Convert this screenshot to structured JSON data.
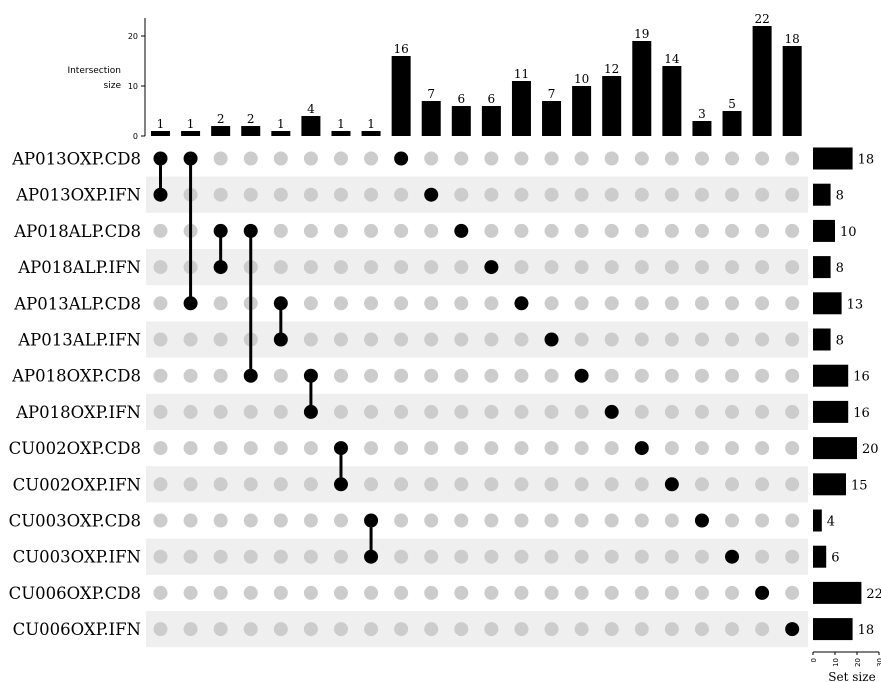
{
  "chart_data": {
    "type": "upset",
    "ylabel": "Intersection\nsize",
    "set_size_label": "Set size",
    "intersection_ticks": [
      0,
      10,
      20
    ],
    "set_size_ticks": [
      0,
      10,
      20,
      30
    ],
    "sets": [
      {
        "name": "AP013OXP.CD8",
        "size": 18
      },
      {
        "name": "AP013OXP.IFN",
        "size": 8
      },
      {
        "name": "AP018ALP.CD8",
        "size": 10
      },
      {
        "name": "AP018ALP.IFN",
        "size": 8
      },
      {
        "name": "AP013ALP.CD8",
        "size": 13
      },
      {
        "name": "AP013ALP.IFN",
        "size": 8
      },
      {
        "name": "AP018OXP.CD8",
        "size": 16
      },
      {
        "name": "AP018OXP.IFN",
        "size": 16
      },
      {
        "name": "CU002OXP.CD8",
        "size": 20
      },
      {
        "name": "CU002OXP.IFN",
        "size": 15
      },
      {
        "name": "CU003OXP.CD8",
        "size": 4
      },
      {
        "name": "CU003OXP.IFN",
        "size": 6
      },
      {
        "name": "CU006OXP.CD8",
        "size": 22
      },
      {
        "name": "CU006OXP.IFN",
        "size": 18
      }
    ],
    "intersections": [
      {
        "size": 1,
        "members": [
          0,
          1
        ]
      },
      {
        "size": 1,
        "members": [
          0,
          4
        ]
      },
      {
        "size": 2,
        "members": [
          2,
          3
        ]
      },
      {
        "size": 2,
        "members": [
          2,
          6
        ]
      },
      {
        "size": 1,
        "members": [
          4,
          5
        ]
      },
      {
        "size": 4,
        "members": [
          6,
          7
        ]
      },
      {
        "size": 1,
        "members": [
          8,
          9
        ]
      },
      {
        "size": 1,
        "members": [
          10,
          11
        ]
      },
      {
        "size": 16,
        "members": [
          0
        ]
      },
      {
        "size": 7,
        "members": [
          1
        ]
      },
      {
        "size": 6,
        "members": [
          2
        ]
      },
      {
        "size": 6,
        "members": [
          3
        ]
      },
      {
        "size": 11,
        "members": [
          4
        ]
      },
      {
        "size": 7,
        "members": [
          5
        ]
      },
      {
        "size": 10,
        "members": [
          6
        ]
      },
      {
        "size": 12,
        "members": [
          7
        ]
      },
      {
        "size": 19,
        "members": [
          8
        ]
      },
      {
        "size": 14,
        "members": [
          9
        ]
      },
      {
        "size": 3,
        "members": [
          10
        ]
      },
      {
        "size": 5,
        "members": [
          11
        ]
      },
      {
        "size": 22,
        "members": [
          12
        ]
      },
      {
        "size": 18,
        "members": [
          13
        ]
      }
    ],
    "colors": {
      "bar": "#000000",
      "dot_active": "#000000",
      "dot_inactive": "#cccccc",
      "stripe": "#efefef"
    }
  }
}
